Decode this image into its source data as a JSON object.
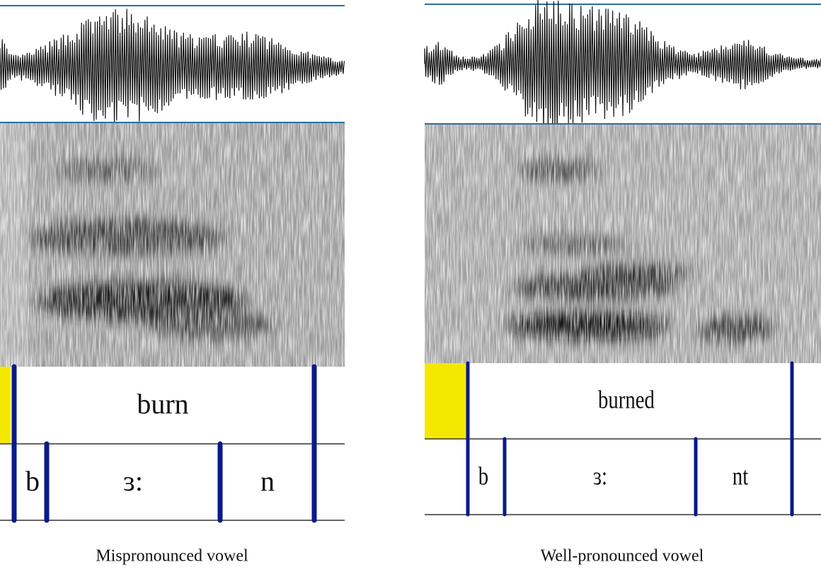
{
  "panels": [
    {
      "word": "burn",
      "phones": [
        "b",
        "ɜ:",
        "n"
      ],
      "caption": "Mispronounced vowel"
    },
    {
      "word": "burned",
      "phones": [
        "b",
        "ɜ:",
        "nt"
      ],
      "caption": "Well-pronounced vowel"
    }
  ]
}
